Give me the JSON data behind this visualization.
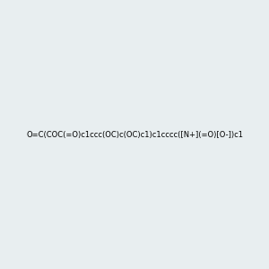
{
  "smiles": "O=C(COC(=O)c1ccc(OC)c(OC)c1)c1cccc([N+](=O)[O-])c1",
  "image_size": 300,
  "background_color": "#e8eef0",
  "bond_color": "#2d6b2d",
  "atom_colors": {
    "O": "#ff0000",
    "N": "#0000ff",
    "C": "#000000"
  },
  "title": "",
  "dpi": 100
}
